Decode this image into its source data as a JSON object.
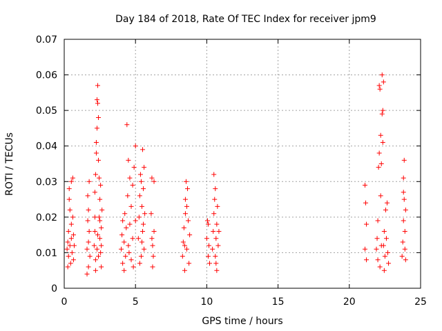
{
  "chart_data": {
    "type": "scatter",
    "title": "Day 184 of 2018, Rate Of TEC Index for receiver jpm9",
    "xlabel": "GPS time / hours",
    "ylabel": "ROTI / TECUs",
    "xlim": [
      0,
      25
    ],
    "ylim": [
      0,
      0.07
    ],
    "xticks": [
      0,
      5,
      10,
      15,
      20,
      25
    ],
    "xtick_labels": [
      "0",
      "5",
      "10",
      "15",
      "20",
      "25"
    ],
    "yticks": [
      0,
      0.01,
      0.02,
      0.03,
      0.04,
      0.05,
      0.06,
      0.07
    ],
    "ytick_labels": [
      "0",
      "0.01",
      "0.02",
      "0.03",
      "0.04",
      "0.05",
      "0.06",
      "0.07"
    ],
    "grid": true,
    "marker": "+",
    "series": [
      {
        "name": "ROTI",
        "color": "#ff0000",
        "points": [
          [
            0.2,
            0.011
          ],
          [
            0.25,
            0.013
          ],
          [
            0.3,
            0.009
          ],
          [
            0.3,
            0.016
          ],
          [
            0.35,
            0.025
          ],
          [
            0.35,
            0.028
          ],
          [
            0.4,
            0.012
          ],
          [
            0.45,
            0.007
          ],
          [
            0.5,
            0.014
          ],
          [
            0.5,
            0.018
          ],
          [
            0.55,
            0.01
          ],
          [
            0.6,
            0.02
          ],
          [
            0.6,
            0.031
          ],
          [
            0.65,
            0.015
          ],
          [
            0.65,
            0.008
          ],
          [
            0.7,
            0.012
          ],
          [
            0.5,
            0.03
          ],
          [
            0.4,
            0.022
          ],
          [
            0.25,
            0.006
          ],
          [
            1.6,
            0.011
          ],
          [
            1.65,
            0.019
          ],
          [
            1.65,
            0.026
          ],
          [
            1.7,
            0.022
          ],
          [
            1.7,
            0.006
          ],
          [
            1.75,
            0.016
          ],
          [
            1.75,
            0.03
          ],
          [
            1.8,
            0.009
          ],
          [
            1.6,
            0.004
          ],
          [
            1.7,
            0.013
          ],
          [
            2.1,
            0.012
          ],
          [
            2.15,
            0.016
          ],
          [
            2.15,
            0.027
          ],
          [
            2.2,
            0.032
          ],
          [
            2.2,
            0.008
          ],
          [
            2.25,
            0.038
          ],
          [
            2.25,
            0.041
          ],
          [
            2.3,
            0.045
          ],
          [
            2.3,
            0.053
          ],
          [
            2.35,
            0.057
          ],
          [
            2.35,
            0.052
          ],
          [
            2.4,
            0.048
          ],
          [
            2.4,
            0.036
          ],
          [
            2.45,
            0.02
          ],
          [
            2.5,
            0.014
          ],
          [
            2.5,
            0.025
          ],
          [
            2.55,
            0.01
          ],
          [
            2.55,
            0.029
          ],
          [
            2.6,
            0.017
          ],
          [
            2.6,
            0.006
          ],
          [
            2.65,
            0.022
          ],
          [
            2.2,
            0.005
          ],
          [
            2.3,
            0.011
          ],
          [
            2.4,
            0.009
          ],
          [
            2.45,
            0.031
          ],
          [
            2.5,
            0.019
          ],
          [
            2.35,
            0.015
          ],
          [
            2.15,
            0.02
          ],
          [
            2.6,
            0.012
          ],
          [
            4.0,
            0.011
          ],
          [
            4.05,
            0.015
          ],
          [
            4.1,
            0.019
          ],
          [
            4.1,
            0.007
          ],
          [
            4.2,
            0.013
          ],
          [
            4.25,
            0.021
          ],
          [
            4.3,
            0.009
          ],
          [
            4.35,
            0.017
          ],
          [
            4.4,
            0.046
          ],
          [
            4.45,
            0.026
          ],
          [
            4.5,
            0.036
          ],
          [
            4.5,
            0.012
          ],
          [
            4.6,
            0.031
          ],
          [
            4.6,
            0.018
          ],
          [
            4.7,
            0.023
          ],
          [
            4.7,
            0.008
          ],
          [
            4.8,
            0.014
          ],
          [
            4.8,
            0.029
          ],
          [
            4.9,
            0.034
          ],
          [
            5.0,
            0.04
          ],
          [
            5.0,
            0.019
          ],
          [
            4.2,
            0.005
          ],
          [
            4.55,
            0.01
          ],
          [
            4.85,
            0.006
          ],
          [
            5.2,
            0.014
          ],
          [
            5.25,
            0.02
          ],
          [
            5.3,
            0.026
          ],
          [
            5.35,
            0.032
          ],
          [
            5.4,
            0.009
          ],
          [
            5.45,
            0.023
          ],
          [
            5.5,
            0.039
          ],
          [
            5.5,
            0.016
          ],
          [
            5.55,
            0.028
          ],
          [
            5.6,
            0.011
          ],
          [
            5.6,
            0.034
          ],
          [
            5.65,
            0.021
          ],
          [
            5.3,
            0.007
          ],
          [
            5.45,
            0.013
          ],
          [
            5.55,
            0.018
          ],
          [
            5.4,
            0.03
          ],
          [
            6.1,
            0.021
          ],
          [
            6.15,
            0.031
          ],
          [
            6.2,
            0.012
          ],
          [
            6.25,
            0.009
          ],
          [
            6.3,
            0.03
          ],
          [
            6.3,
            0.016
          ],
          [
            6.2,
            0.006
          ],
          [
            6.15,
            0.014
          ],
          [
            8.3,
            0.009
          ],
          [
            8.35,
            0.013
          ],
          [
            8.4,
            0.017
          ],
          [
            8.45,
            0.005
          ],
          [
            8.5,
            0.021
          ],
          [
            8.5,
            0.025
          ],
          [
            8.55,
            0.03
          ],
          [
            8.6,
            0.011
          ],
          [
            8.65,
            0.028
          ],
          [
            8.7,
            0.019
          ],
          [
            8.75,
            0.007
          ],
          [
            8.8,
            0.015
          ],
          [
            8.6,
            0.023
          ],
          [
            8.45,
            0.012
          ],
          [
            10.0,
            0.014
          ],
          [
            10.05,
            0.019
          ],
          [
            10.1,
            0.009
          ],
          [
            10.1,
            0.018
          ],
          [
            10.15,
            0.012
          ],
          [
            10.2,
            0.007
          ],
          [
            10.4,
            0.011
          ],
          [
            10.45,
            0.016
          ],
          [
            10.5,
            0.032
          ],
          [
            10.55,
            0.025
          ],
          [
            10.6,
            0.009
          ],
          [
            10.6,
            0.028
          ],
          [
            10.65,
            0.014
          ],
          [
            10.7,
            0.005
          ],
          [
            10.7,
            0.018
          ],
          [
            10.75,
            0.023
          ],
          [
            10.8,
            0.012
          ],
          [
            10.85,
            0.016
          ],
          [
            10.5,
            0.021
          ],
          [
            10.65,
            0.007
          ],
          [
            21.1,
            0.029
          ],
          [
            21.15,
            0.024
          ],
          [
            21.2,
            0.018
          ],
          [
            21.1,
            0.011
          ],
          [
            21.2,
            0.008
          ],
          [
            21.9,
            0.011
          ],
          [
            21.95,
            0.014
          ],
          [
            22.0,
            0.008
          ],
          [
            22.0,
            0.019
          ],
          [
            22.05,
            0.034
          ],
          [
            22.1,
            0.038
          ],
          [
            22.1,
            0.057
          ],
          [
            22.15,
            0.056
          ],
          [
            22.2,
            0.043
          ],
          [
            22.2,
            0.026
          ],
          [
            22.25,
            0.035
          ],
          [
            22.3,
            0.049
          ],
          [
            22.3,
            0.06
          ],
          [
            22.35,
            0.05
          ],
          [
            22.35,
            0.041
          ],
          [
            22.4,
            0.058
          ],
          [
            22.4,
            0.012
          ],
          [
            22.45,
            0.016
          ],
          [
            22.5,
            0.009
          ],
          [
            22.55,
            0.022
          ],
          [
            22.6,
            0.014
          ],
          [
            22.65,
            0.024
          ],
          [
            22.7,
            0.01
          ],
          [
            22.75,
            0.007
          ],
          [
            22.15,
            0.006
          ],
          [
            22.25,
            0.012
          ],
          [
            22.45,
            0.005
          ],
          [
            23.7,
            0.009
          ],
          [
            23.75,
            0.013
          ],
          [
            23.8,
            0.019
          ],
          [
            23.8,
            0.031
          ],
          [
            23.85,
            0.025
          ],
          [
            23.85,
            0.036
          ],
          [
            23.9,
            0.016
          ],
          [
            23.9,
            0.011
          ],
          [
            23.95,
            0.022
          ],
          [
            23.95,
            0.008
          ],
          [
            23.8,
            0.027
          ]
        ]
      }
    ]
  }
}
